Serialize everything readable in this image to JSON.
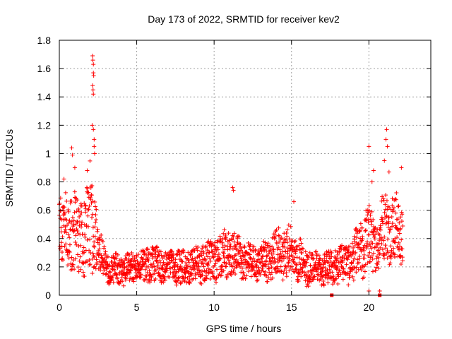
{
  "chart_data": {
    "type": "scatter",
    "title": "Day 173 of 2022, SRMTID for receiver kev2",
    "xlabel": "GPS time / hours",
    "ylabel": "SRMTID / TECUs",
    "xlim": [
      0,
      24
    ],
    "ylim": [
      0,
      1.8
    ],
    "xticks": [
      0,
      5,
      10,
      15,
      20
    ],
    "yticks": [
      0,
      0.2,
      0.4,
      0.6,
      0.8,
      1,
      1.2,
      1.4,
      1.6,
      1.8
    ],
    "grid": true,
    "marker": "+",
    "color": "#ff0000",
    "envelope": [
      {
        "t": 0.0,
        "base": 0.45,
        "spread": 0.3
      },
      {
        "t": 0.5,
        "base": 0.45,
        "spread": 0.3
      },
      {
        "t": 1.0,
        "base": 0.42,
        "spread": 0.35
      },
      {
        "t": 1.5,
        "base": 0.42,
        "spread": 0.3
      },
      {
        "t": 2.0,
        "base": 0.5,
        "spread": 0.5
      },
      {
        "t": 2.5,
        "base": 0.38,
        "spread": 0.25
      },
      {
        "t": 3.0,
        "base": 0.2,
        "spread": 0.12
      },
      {
        "t": 4.0,
        "base": 0.18,
        "spread": 0.12
      },
      {
        "t": 5.0,
        "base": 0.2,
        "spread": 0.12
      },
      {
        "t": 6.0,
        "base": 0.22,
        "spread": 0.15
      },
      {
        "t": 7.0,
        "base": 0.2,
        "spread": 0.14
      },
      {
        "t": 8.0,
        "base": 0.2,
        "spread": 0.15
      },
      {
        "t": 9.0,
        "base": 0.22,
        "spread": 0.15
      },
      {
        "t": 10.0,
        "base": 0.25,
        "spread": 0.18
      },
      {
        "t": 11.0,
        "base": 0.3,
        "spread": 0.2
      },
      {
        "t": 12.0,
        "base": 0.24,
        "spread": 0.15
      },
      {
        "t": 13.0,
        "base": 0.22,
        "spread": 0.14
      },
      {
        "t": 14.0,
        "base": 0.3,
        "spread": 0.2
      },
      {
        "t": 15.0,
        "base": 0.3,
        "spread": 0.22
      },
      {
        "t": 16.0,
        "base": 0.2,
        "spread": 0.15
      },
      {
        "t": 17.0,
        "base": 0.18,
        "spread": 0.13
      },
      {
        "t": 18.0,
        "base": 0.22,
        "spread": 0.15
      },
      {
        "t": 19.0,
        "base": 0.25,
        "spread": 0.18
      },
      {
        "t": 20.0,
        "base": 0.4,
        "spread": 0.3
      },
      {
        "t": 20.5,
        "base": 0.35,
        "spread": 0.2
      },
      {
        "t": 21.0,
        "base": 0.5,
        "spread": 0.3
      },
      {
        "t": 21.5,
        "base": 0.5,
        "spread": 0.3
      },
      {
        "t": 22.2,
        "base": 0.4,
        "spread": 0.25
      }
    ],
    "notable_points": [
      {
        "x": 2.15,
        "y": 1.69
      },
      {
        "x": 2.17,
        "y": 1.66
      },
      {
        "x": 2.2,
        "y": 1.63
      },
      {
        "x": 2.2,
        "y": 1.57
      },
      {
        "x": 2.22,
        "y": 1.55
      },
      {
        "x": 2.15,
        "y": 1.48
      },
      {
        "x": 2.18,
        "y": 1.45
      },
      {
        "x": 2.2,
        "y": 1.42
      },
      {
        "x": 2.12,
        "y": 1.2
      },
      {
        "x": 2.2,
        "y": 1.17
      },
      {
        "x": 2.25,
        "y": 1.1
      },
      {
        "x": 2.25,
        "y": 1.05
      },
      {
        "x": 2.28,
        "y": 1.0
      },
      {
        "x": 0.8,
        "y": 1.04
      },
      {
        "x": 0.85,
        "y": 0.99
      },
      {
        "x": 1.0,
        "y": 0.9
      },
      {
        "x": 1.8,
        "y": 0.88
      },
      {
        "x": 0.3,
        "y": 0.82
      },
      {
        "x": 11.2,
        "y": 0.76
      },
      {
        "x": 11.25,
        "y": 0.74
      },
      {
        "x": 15.15,
        "y": 0.66
      },
      {
        "x": 20.0,
        "y": 1.05
      },
      {
        "x": 21.15,
        "y": 1.17
      },
      {
        "x": 21.1,
        "y": 1.1
      },
      {
        "x": 21.2,
        "y": 1.05
      },
      {
        "x": 21.0,
        "y": 0.95
      },
      {
        "x": 21.3,
        "y": 0.87
      },
      {
        "x": 22.1,
        "y": 0.9
      },
      {
        "x": 20.3,
        "y": 0.88
      },
      {
        "x": 20.2,
        "y": 0.8
      },
      {
        "x": 20.0,
        "y": 0.03
      },
      {
        "x": 20.7,
        "y": 0.03
      }
    ],
    "zero_points": [
      {
        "x": 17.6,
        "y": 0.0
      },
      {
        "x": 20.7,
        "y": 0.0
      }
    ]
  }
}
